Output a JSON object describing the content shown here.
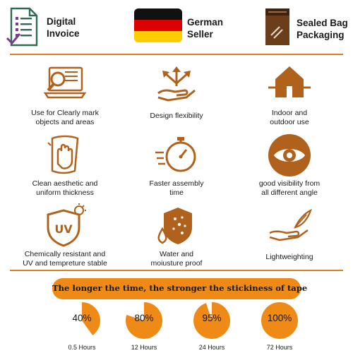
{
  "header": {
    "items": [
      {
        "line1": "Digital",
        "line2": "Invoice",
        "icon": "invoice-icon"
      },
      {
        "line1": "German",
        "line2": "Seller",
        "icon": "german-flag-icon"
      },
      {
        "line1": "Sealed Bag",
        "line2": "Packaging",
        "icon": "sealed-bag-icon"
      }
    ]
  },
  "features": [
    {
      "line1": "Use for Clearly mark",
      "line2": "objects and areas",
      "icon": "laptop-magnifier-icon"
    },
    {
      "line1": "Design flexibility",
      "line2": "",
      "icon": "hand-arrows-icon"
    },
    {
      "line1": "Indoor and",
      "line2": "outdoor use",
      "icon": "house-arrows-icon"
    },
    {
      "line1": "Clean aesthetic and",
      "line2": "uniform thickness",
      "icon": "wiping-cloth-icon"
    },
    {
      "line1": "Faster assembly",
      "line2": "time",
      "icon": "stopwatch-icon"
    },
    {
      "line1": "good visibility from",
      "line2": "all different angle",
      "icon": "eye-icon"
    },
    {
      "line1": "Chemically resistant and",
      "line2": "UV and tempreture stable",
      "icon": "uv-shield-icon"
    },
    {
      "line1": "Water and",
      "line2": "moiusture proof",
      "icon": "water-drop-icon"
    },
    {
      "line1": "Lightweighting",
      "line2": "",
      "icon": "hand-feather-icon"
    }
  ],
  "banner": {
    "text": "The longer the time, the stronger the stickiness of tape"
  },
  "colors": {
    "accent": "#ef8a17",
    "icon_brown": "#b0621c",
    "rule": "#e07b20"
  },
  "chart_data": {
    "type": "pie",
    "title": "The longer the time, the stronger the stickiness of tape",
    "charts": [
      {
        "label": "0.5 Hours",
        "value": 40,
        "value_text": "40%"
      },
      {
        "label": "12 Hours",
        "value": 80,
        "value_text": "80%"
      },
      {
        "label": "24 Hours",
        "value": 95,
        "value_text": "95%"
      },
      {
        "label": "72 Hours",
        "value": 100,
        "value_text": "100%"
      }
    ]
  }
}
